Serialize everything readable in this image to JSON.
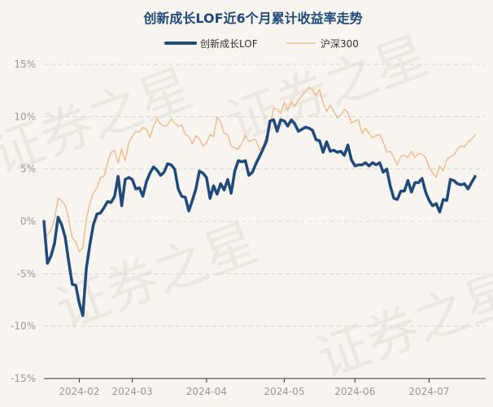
{
  "chart_data": {
    "type": "line",
    "title": "创新成长LOF近6个月累计收益率走势",
    "watermark": "证券之星",
    "xlabel": "",
    "ylabel": "",
    "ylim": [
      -15,
      15
    ],
    "yticks": [
      15,
      10,
      5,
      0,
      -5,
      -10,
      -15
    ],
    "ytick_labels": [
      "15%",
      "10%",
      "5%",
      "0%",
      "-5%",
      "-10%",
      "-15%"
    ],
    "x_range": [
      0,
      125
    ],
    "xticks": [
      {
        "label": "2024-02",
        "x": 10
      },
      {
        "label": "2024-03",
        "x": 25
      },
      {
        "label": "2024-04",
        "x": 46
      },
      {
        "label": "2024-05",
        "x": 68
      },
      {
        "label": "2024-06",
        "x": 88
      },
      {
        "label": "2024-07",
        "x": 109
      }
    ],
    "legend_position": "top-center",
    "grid": true,
    "series": [
      {
        "name": "创新成长LOF",
        "color": "#1f4a7a",
        "values": [
          0.0,
          -4.0,
          -3.3,
          -2.1,
          0.4,
          -0.3,
          -1.5,
          -3.8,
          -6.0,
          -6.1,
          -7.8,
          -9.0,
          -4.5,
          -2.2,
          -0.3,
          0.7,
          0.8,
          1.3,
          1.9,
          1.8,
          2.4,
          4.3,
          1.5,
          4.0,
          4.2,
          4.0,
          3.1,
          3.2,
          2.4,
          3.8,
          4.6,
          5.2,
          4.9,
          4.4,
          4.7,
          5.5,
          5.4,
          5.0,
          3.1,
          2.4,
          2.3,
          1.0,
          2.0,
          3.1,
          4.8,
          4.6,
          4.2,
          2.2,
          3.4,
          2.6,
          3.6,
          3.0,
          4.0,
          2.7,
          4.8,
          5.8,
          5.7,
          5.8,
          4.4,
          4.7,
          5.5,
          6.2,
          6.9,
          7.7,
          9.6,
          9.7,
          8.6,
          9.7,
          9.6,
          9.1,
          9.7,
          9.3,
          8.6,
          8.8,
          9.0,
          8.9,
          8.7,
          7.8,
          7.7,
          6.6,
          7.6,
          6.7,
          6.8,
          6.6,
          6.7,
          6.3,
          7.3,
          5.9,
          5.3,
          5.4,
          5.4,
          5.6,
          5.3,
          5.6,
          5.4,
          5.6,
          4.7,
          5.0,
          3.4,
          2.2,
          2.1,
          2.9,
          2.9,
          3.9,
          2.8,
          3.7,
          3.7,
          4.1,
          2.8,
          2.0,
          1.5,
          1.7,
          0.9,
          2.1,
          2.0,
          4.0,
          3.9,
          3.6,
          3.5,
          3.6,
          3.1,
          3.7,
          4.3
        ]
      },
      {
        "name": "沪深300",
        "color": "#f0b27a",
        "values": [
          -1.5,
          -1.3,
          -0.8,
          0.2,
          2.2,
          2.0,
          1.5,
          0.3,
          -1.6,
          -1.9,
          -2.9,
          -2.5,
          0.2,
          1.7,
          2.7,
          3.2,
          4.2,
          4.3,
          5.6,
          6.6,
          6.8,
          5.6,
          6.9,
          5.8,
          7.5,
          8.1,
          8.6,
          8.5,
          9.0,
          8.8,
          8.0,
          9.1,
          9.8,
          9.3,
          9.1,
          9.2,
          9.8,
          9.4,
          9.1,
          9.2,
          8.3,
          8.1,
          7.4,
          8.2,
          7.9,
          7.2,
          7.5,
          8.3,
          8.1,
          10.0,
          9.5,
          8.4,
          8.3,
          7.2,
          7.0,
          6.9,
          7.5,
          8.2,
          7.6,
          7.8,
          7.8,
          6.8,
          7.2,
          8.3,
          9.1,
          10.8,
          10.7,
          10.3,
          11.4,
          10.6,
          11.4,
          11.0,
          11.6,
          12.0,
          12.4,
          12.8,
          12.6,
          12.0,
          12.6,
          11.3,
          10.5,
          11.1,
          10.5,
          9.9,
          10.1,
          10.7,
          10.4,
          9.4,
          9.6,
          9.7,
          8.4,
          8.9,
          8.4,
          8.0,
          8.2,
          8.3,
          7.6,
          6.6,
          6.7,
          6.1,
          5.4,
          6.2,
          6.3,
          6.1,
          6.7,
          6.1,
          6.5,
          6.4,
          6.1,
          5.2,
          4.6,
          4.2,
          5.3,
          4.8,
          5.9,
          6.2,
          6.3,
          6.9,
          7.2,
          7.1,
          7.6,
          7.8,
          8.3
        ]
      }
    ]
  }
}
